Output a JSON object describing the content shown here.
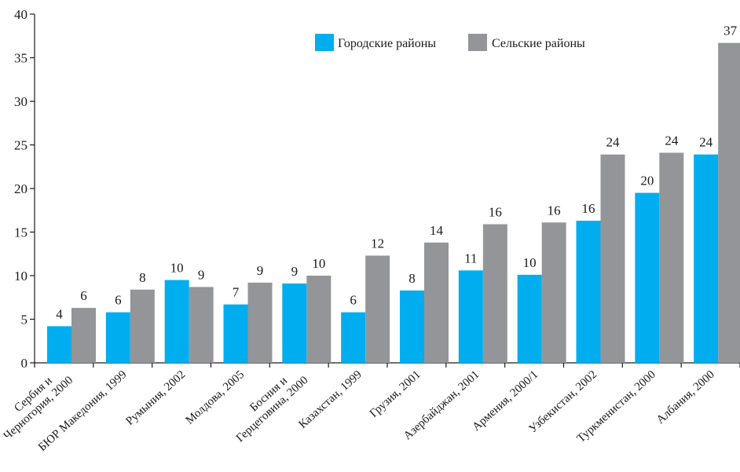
{
  "chart_data": {
    "type": "bar",
    "title": "",
    "xlabel": "",
    "ylabel": "",
    "ylim": [
      0,
      40
    ],
    "yticks": [
      0,
      5,
      10,
      15,
      20,
      25,
      30,
      35,
      40
    ],
    "grid": false,
    "legend_position": "top-center",
    "categories": [
      [
        "Сербия и",
        "Черногория, 2000"
      ],
      [
        "БЮР Македония, 1999"
      ],
      [
        "Румыния, 2002"
      ],
      [
        "Молдова, 2005"
      ],
      [
        "Босния и",
        "Герцеговина, 2000"
      ],
      [
        "Казахстан, 1999"
      ],
      [
        "Грузия, 2001"
      ],
      [
        "Азербайджан, 2001"
      ],
      [
        "Армения, 2000/1"
      ],
      [
        "Узбекистан, 2002"
      ],
      [
        "Туркменистан, 2000"
      ],
      [
        "Албания, 2000"
      ]
    ],
    "series": [
      {
        "name": "Городские районы",
        "color": "#00aeef",
        "values": [
          4.2,
          5.8,
          9.5,
          6.7,
          9.1,
          5.8,
          8.3,
          10.6,
          10.1,
          16.3,
          19.5,
          23.9
        ],
        "labels": [
          "4",
          "6",
          "10",
          "7",
          "9",
          "6",
          "8",
          "11",
          "10",
          "16",
          "20",
          "24"
        ]
      },
      {
        "name": "Сельские районы",
        "color": "#939598",
        "values": [
          6.3,
          8.4,
          8.7,
          9.2,
          10.0,
          12.3,
          13.8,
          15.9,
          16.1,
          23.9,
          24.1,
          36.7
        ],
        "labels": [
          "6",
          "8",
          "9",
          "9",
          "10",
          "12",
          "14",
          "16",
          "16",
          "24",
          "24",
          "37"
        ]
      }
    ]
  }
}
